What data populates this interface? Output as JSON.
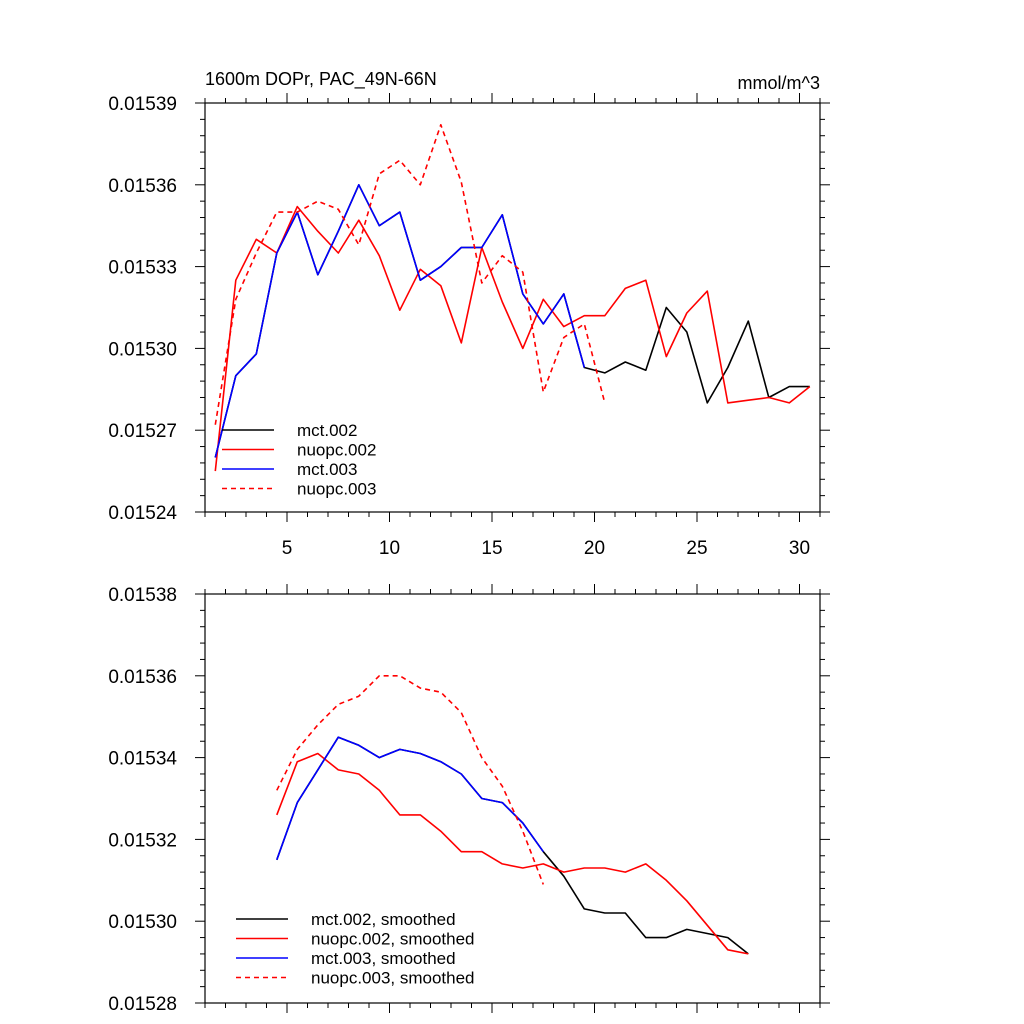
{
  "chart_data": [
    {
      "type": "line",
      "title_left": "1600m DOPr, PAC_49N-66N",
      "title_right": "mmol/m^3",
      "xlabel": "",
      "ylabel": "",
      "xlim": [
        1,
        31
      ],
      "ylim": [
        0.01524,
        0.01539
      ],
      "x_ticks": [
        5,
        10,
        15,
        20,
        25,
        30
      ],
      "y_ticks": [
        0.01524,
        0.01527,
        0.0153,
        0.01533,
        0.01536,
        0.01539
      ],
      "y_tick_labels": [
        "0.01524",
        "0.01527",
        "0.01530",
        "0.01533",
        "0.01536",
        "0.01539"
      ],
      "show_x_tick_labels": true,
      "legend_position": "bottom-left",
      "series": [
        {
          "name": "mct.002",
          "color": "#000000",
          "dash": "solid",
          "x": [
            1.5,
            2.5,
            3.5,
            4.5,
            5.5,
            6.5,
            7.5,
            8.5,
            9.5,
            10.5,
            11.5,
            12.5,
            13.5,
            14.5,
            15.5,
            16.5,
            17.5,
            18.5,
            19.5,
            20.5,
            21.5,
            22.5,
            23.5,
            24.5,
            25.5,
            26.5,
            27.5,
            28.5,
            29.5,
            30.5
          ],
          "y": [
            0.01526,
            0.01529,
            0.015298,
            0.015335,
            0.01535,
            0.015327,
            0.015343,
            0.01536,
            0.015345,
            0.01535,
            0.015325,
            0.01533,
            0.015337,
            0.015337,
            0.015349,
            0.01532,
            0.015309,
            0.01532,
            0.015293,
            0.015291,
            0.015295,
            0.015292,
            0.015315,
            0.015306,
            0.01528,
            0.015293,
            0.01531,
            0.015282,
            0.015286,
            0.015286
          ]
        },
        {
          "name": "nuopc.002",
          "color": "#ff0000",
          "dash": "solid",
          "x": [
            1.5,
            2.5,
            3.5,
            4.5,
            5.5,
            6.5,
            7.5,
            8.5,
            9.5,
            10.5,
            11.5,
            12.5,
            13.5,
            14.5,
            15.5,
            16.5,
            17.5,
            18.5,
            19.5,
            20.5,
            21.5,
            22.5,
            23.5,
            24.5,
            25.5,
            26.5,
            27.5,
            28.5,
            29.5,
            30.5
          ],
          "y": [
            0.015255,
            0.015325,
            0.01534,
            0.015335,
            0.015352,
            0.015343,
            0.015335,
            0.015347,
            0.015334,
            0.015314,
            0.015329,
            0.015323,
            0.015302,
            0.015337,
            0.015317,
            0.0153,
            0.015318,
            0.015308,
            0.015312,
            0.015312,
            0.015322,
            0.015325,
            0.015297,
            0.015313,
            0.015321,
            0.01528,
            0.015281,
            0.015282,
            0.01528,
            0.015286
          ]
        },
        {
          "name": "mct.003",
          "color": "#0000ff",
          "dash": "solid",
          "x": [
            1.5,
            2.5,
            3.5,
            4.5,
            5.5,
            6.5,
            7.5,
            8.5,
            9.5,
            10.5,
            11.5,
            12.5,
            13.5,
            14.5,
            15.5,
            16.5,
            17.5,
            18.5,
            19.5
          ],
          "y": [
            0.01526,
            0.01529,
            0.015298,
            0.015335,
            0.01535,
            0.015327,
            0.015343,
            0.01536,
            0.015345,
            0.01535,
            0.015325,
            0.01533,
            0.015337,
            0.015337,
            0.015349,
            0.01532,
            0.015309,
            0.01532,
            0.015293
          ]
        },
        {
          "name": "nuopc.003",
          "color": "#ff0000",
          "dash": "dashed",
          "x": [
            1.5,
            2.5,
            3.5,
            4.5,
            5.5,
            6.5,
            7.5,
            8.5,
            9.5,
            10.5,
            11.5,
            12.5,
            13.5,
            14.5,
            15.5,
            16.5,
            17.5,
            18.5,
            19.5,
            20.5
          ],
          "y": [
            0.015272,
            0.015318,
            0.015335,
            0.01535,
            0.01535,
            0.015354,
            0.015351,
            0.015338,
            0.015364,
            0.015369,
            0.01536,
            0.015382,
            0.015361,
            0.015324,
            0.015334,
            0.015328,
            0.015284,
            0.015304,
            0.015309,
            0.01528
          ]
        }
      ]
    },
    {
      "type": "line",
      "title_left": "",
      "title_right": "",
      "xlabel": "",
      "ylabel": "",
      "xlim": [
        1,
        31
      ],
      "ylim": [
        0.01528,
        0.01538
      ],
      "x_ticks": [
        5,
        10,
        15,
        20,
        25,
        30
      ],
      "y_ticks": [
        0.01528,
        0.0153,
        0.01532,
        0.01534,
        0.01536,
        0.01538
      ],
      "y_tick_labels": [
        "0.01528",
        "0.01530",
        "0.01532",
        "0.01534",
        "0.01536",
        "0.01538"
      ],
      "show_x_tick_labels": false,
      "legend_position": "bottom-left",
      "series": [
        {
          "name": "mct.002, smoothed",
          "color": "#000000",
          "dash": "solid",
          "x": [
            4.5,
            5.5,
            6.5,
            7.5,
            8.5,
            9.5,
            10.5,
            11.5,
            12.5,
            13.5,
            14.5,
            15.5,
            16.5,
            17.5,
            18.5,
            19.5,
            20.5,
            21.5,
            22.5,
            23.5,
            24.5,
            25.5,
            26.5,
            27.5
          ],
          "y": [
            0.015315,
            0.015329,
            0.015337,
            0.015345,
            0.015343,
            0.01534,
            0.015342,
            0.015341,
            0.015339,
            0.015336,
            0.01533,
            0.015329,
            0.015324,
            0.015317,
            0.015311,
            0.015303,
            0.015302,
            0.015302,
            0.015296,
            0.015296,
            0.015298,
            0.015297,
            0.015296,
            0.015292
          ]
        },
        {
          "name": "nuopc.002, smoothed",
          "color": "#ff0000",
          "dash": "solid",
          "x": [
            4.5,
            5.5,
            6.5,
            7.5,
            8.5,
            9.5,
            10.5,
            11.5,
            12.5,
            13.5,
            14.5,
            15.5,
            16.5,
            17.5,
            18.5,
            19.5,
            20.5,
            21.5,
            22.5,
            23.5,
            24.5,
            25.5,
            26.5,
            27.5
          ],
          "y": [
            0.015326,
            0.015339,
            0.015341,
            0.015337,
            0.015336,
            0.015332,
            0.015326,
            0.015326,
            0.015322,
            0.015317,
            0.015317,
            0.015314,
            0.015313,
            0.015314,
            0.015312,
            0.015313,
            0.015313,
            0.015312,
            0.015314,
            0.01531,
            0.015305,
            0.015299,
            0.015293,
            0.015292
          ]
        },
        {
          "name": "mct.003, smoothed",
          "color": "#0000ff",
          "dash": "solid",
          "x": [
            4.5,
            5.5,
            6.5,
            7.5,
            8.5,
            9.5,
            10.5,
            11.5,
            12.5,
            13.5,
            14.5,
            15.5,
            16.5,
            17.5
          ],
          "y": [
            0.015315,
            0.015329,
            0.015337,
            0.015345,
            0.015343,
            0.01534,
            0.015342,
            0.015341,
            0.015339,
            0.015336,
            0.01533,
            0.015329,
            0.015324,
            0.015317
          ]
        },
        {
          "name": "nuopc.003, smoothed",
          "color": "#ff0000",
          "dash": "dashed",
          "x": [
            4.5,
            5.5,
            6.5,
            7.5,
            8.5,
            9.5,
            10.5,
            11.5,
            12.5,
            13.5,
            14.5,
            15.5,
            16.5,
            17.5
          ],
          "y": [
            0.015332,
            0.015342,
            0.015348,
            0.015353,
            0.015355,
            0.01536,
            0.01536,
            0.015357,
            0.015356,
            0.015351,
            0.01534,
            0.015333,
            0.015322,
            0.015309
          ]
        }
      ]
    }
  ]
}
